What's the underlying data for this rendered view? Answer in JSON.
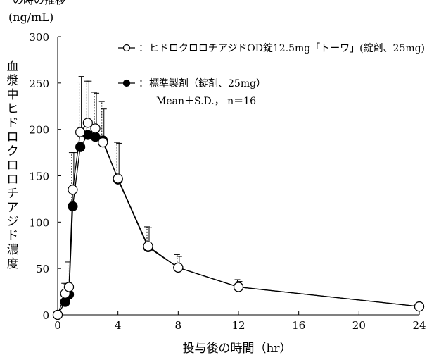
{
  "chart_data": {
    "type": "line",
    "title_fragment": "の時の推移",
    "unit_label": "(ng/mL)",
    "ylabel": "血漿中ヒドロクロロチアジド濃度",
    "xlabel": "投与後の時間（hr）",
    "xlim": [
      0,
      24
    ],
    "ylim": [
      0,
      300
    ],
    "x_ticks": [
      0,
      4,
      8,
      12,
      16,
      20,
      24
    ],
    "y_ticks": [
      0,
      50,
      100,
      150,
      200,
      250,
      300
    ],
    "grid": false,
    "legend_position": "top-right",
    "x": [
      0,
      0.5,
      0.75,
      1,
      1.5,
      2,
      2.5,
      3,
      4,
      6,
      8,
      12,
      24
    ],
    "series": [
      {
        "name": "ヒドロクロロチアジドOD錠12.5mg「トーワ」(錠剤、25mg)",
        "marker": "open-circle",
        "values": [
          0,
          23,
          30,
          135,
          197,
          207,
          201,
          186,
          147,
          74,
          51,
          30,
          9
        ],
        "sd": [
          0,
          0,
          0,
          40,
          60,
          45,
          38,
          36,
          38,
          20,
          12,
          6,
          0
        ]
      },
      {
        "name": "標準製剤（錠剤、25mg）",
        "marker": "filled-circle",
        "values": [
          0,
          14,
          22,
          117,
          181,
          194,
          192,
          188,
          146,
          73,
          51,
          30,
          9
        ],
        "sd": [
          0,
          20,
          35,
          58,
          70,
          58,
          48,
          42,
          40,
          22,
          14,
          8,
          0
        ]
      }
    ],
    "legend_prefix": "：",
    "legend_stats": "Mean＋S.D.， n＝16"
  }
}
